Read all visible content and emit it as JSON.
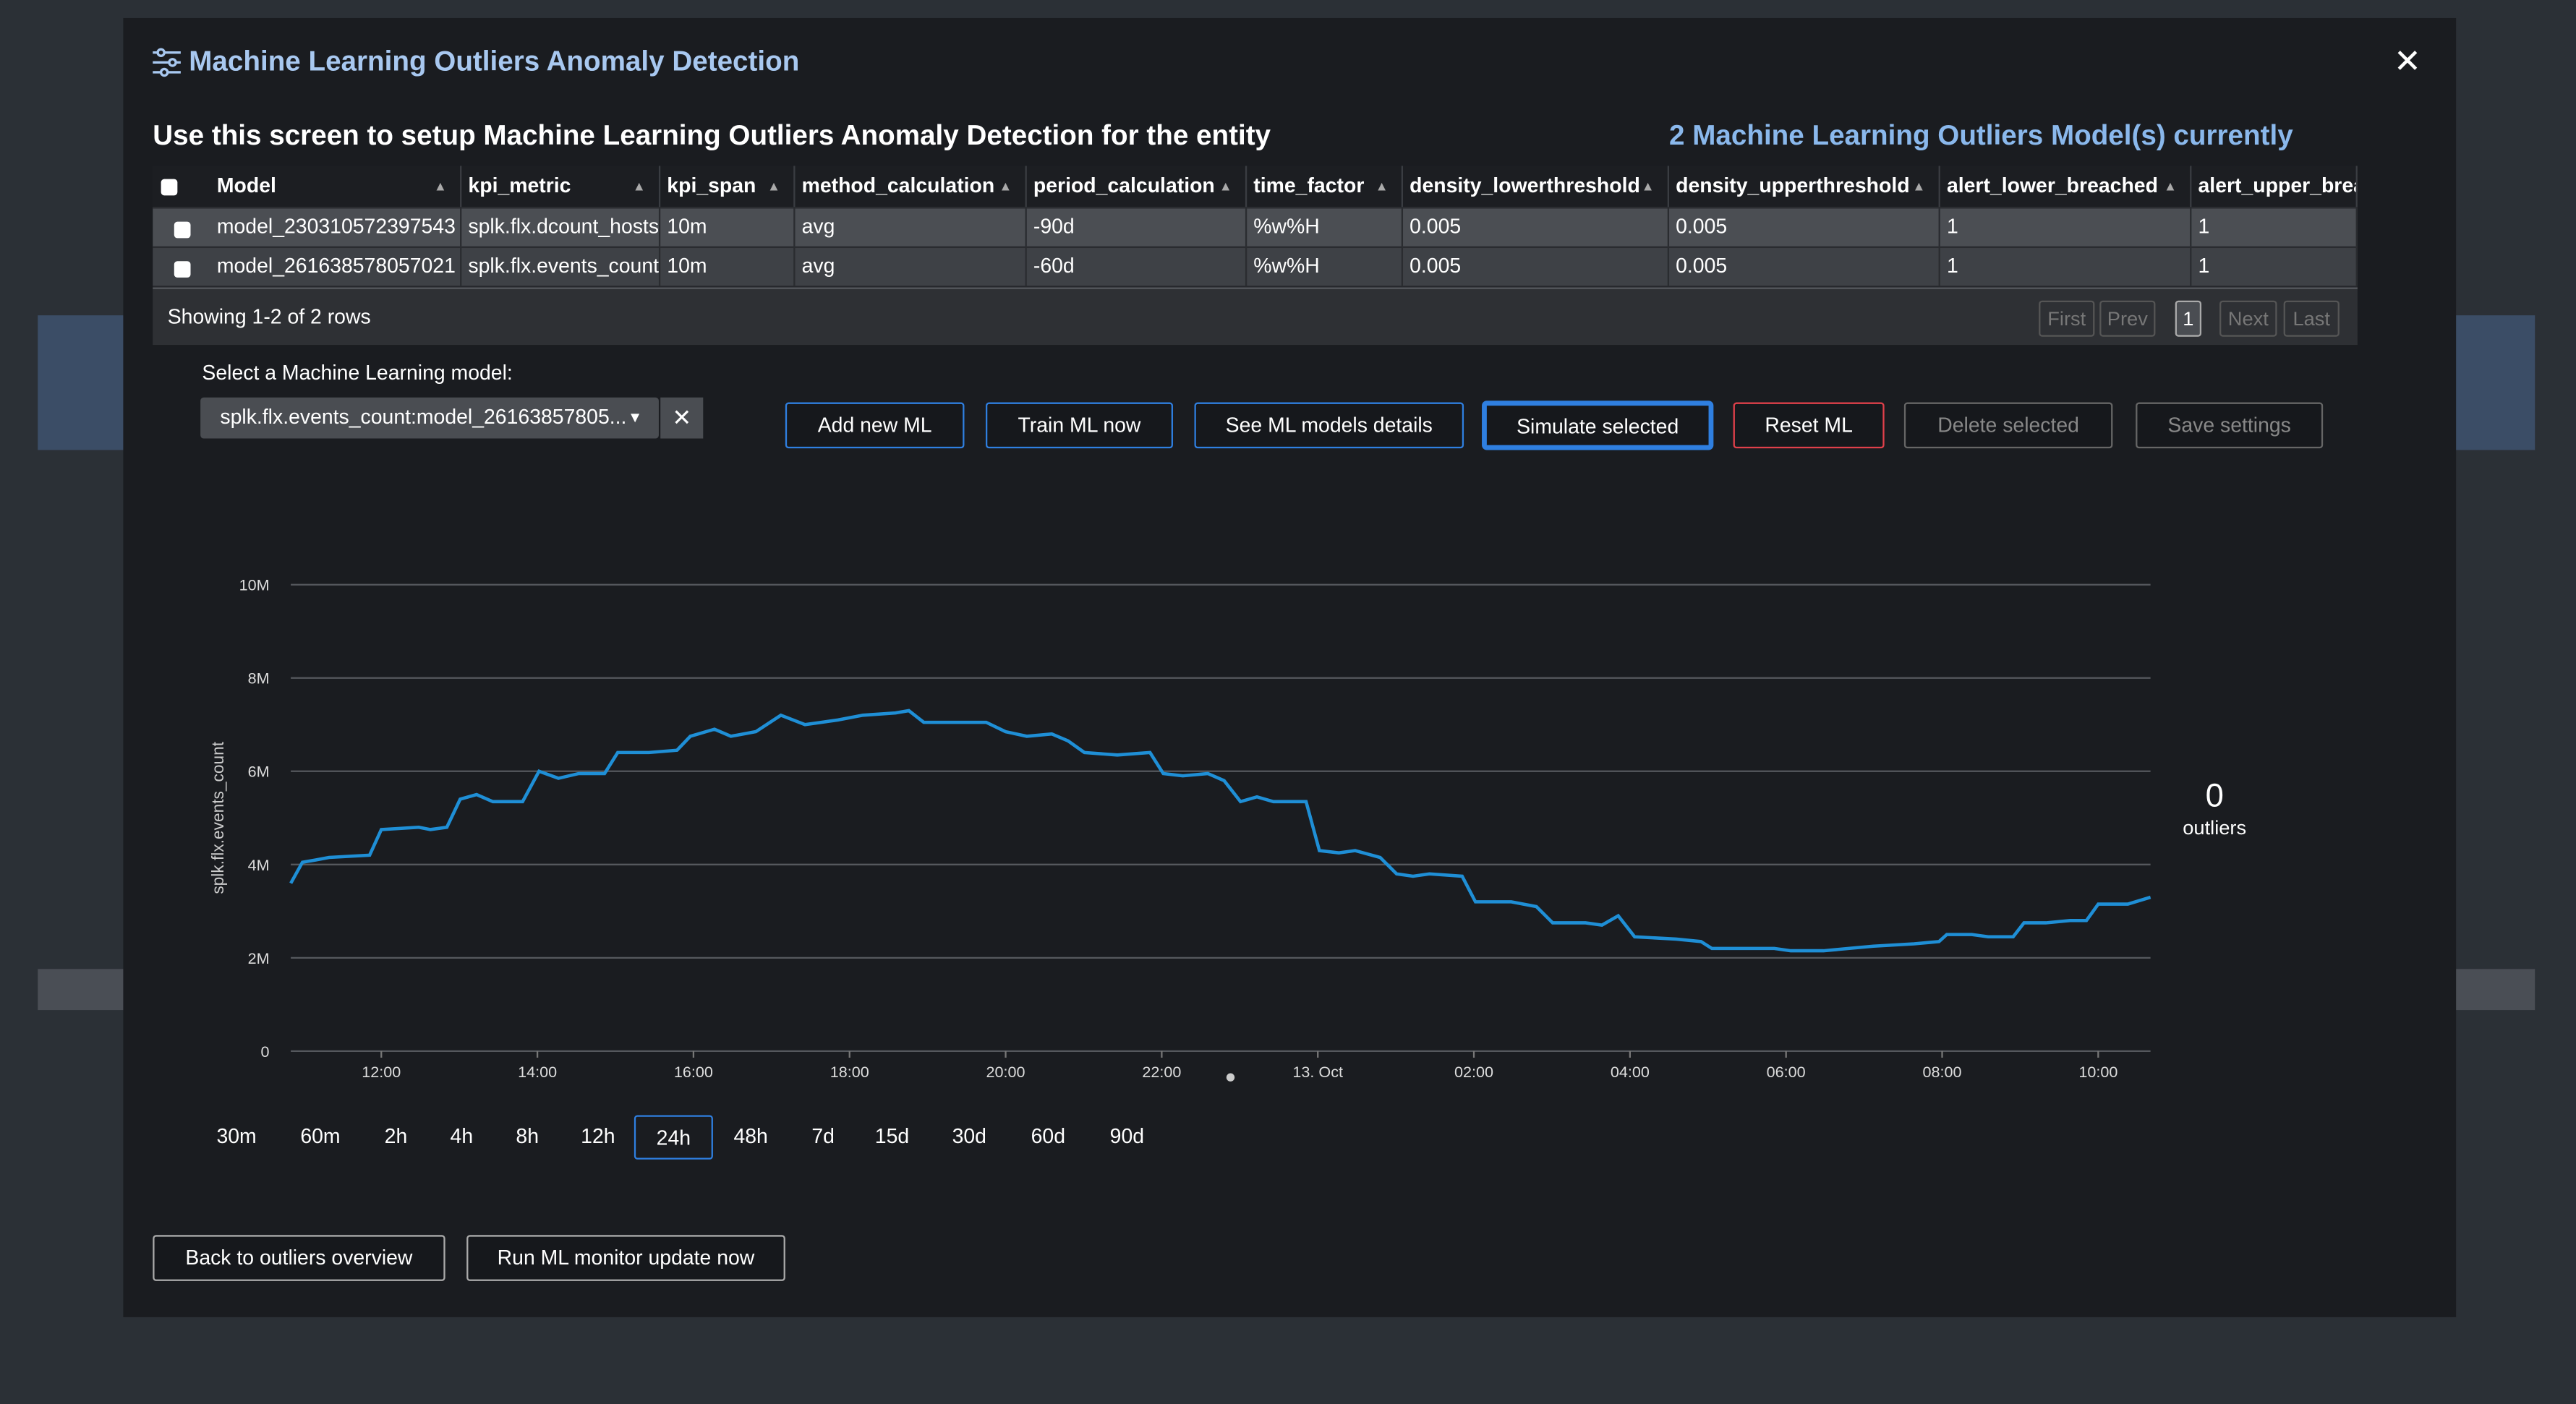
{
  "header": {
    "title": "Machine Learning Outliers Anomaly Detection",
    "subtitle": "Use this screen to setup Machine Learning Outliers Anomaly Detection for the entity",
    "model_count": "2 Machine Learning Outliers Model(s) currently"
  },
  "table": {
    "columns": [
      "Model",
      "kpi_metric",
      "kpi_span",
      "method_calculation",
      "period_calculation",
      "time_factor",
      "density_lowerthreshold",
      "density_upperthreshold",
      "alert_lower_breached",
      "alert_upper_brea"
    ],
    "rows": [
      [
        "model_230310572397543",
        "splk.flx.dcount_hosts",
        "10m",
        "avg",
        "-90d",
        "%w%H",
        "0.005",
        "0.005",
        "1",
        "1"
      ],
      [
        "model_261638578057021",
        "splk.flx.events_count",
        "10m",
        "avg",
        "-60d",
        "%w%H",
        "0.005",
        "0.005",
        "1",
        "1"
      ]
    ],
    "footer": "Showing 1-2 of 2 rows",
    "pager": [
      "First",
      "Prev",
      "1",
      "Next",
      "Last"
    ]
  },
  "model_select": {
    "label": "Select a Machine Learning model:",
    "value": "splk.flx.events_count:model_26163857805..."
  },
  "buttons": [
    "Add new ML",
    "Train ML now",
    "See ML models details",
    "Simulate selected",
    "Reset ML",
    "Delete selected",
    "Save settings"
  ],
  "chart_data": {
    "type": "line",
    "y_label": "splk.flx.events_count",
    "color": "#1f8fd6",
    "x": [
      10.84,
      10.99,
      11.16,
      11.33,
      11.85,
      12.0,
      12.48,
      12.63,
      12.84,
      13.01,
      13.22,
      13.43,
      13.81,
      14.02,
      14.27,
      14.53,
      14.86,
      15.03,
      15.43,
      15.79,
      15.96,
      16.27,
      16.48,
      16.8,
      17.12,
      17.43,
      17.64,
      17.85,
      18.17,
      18.59,
      18.76,
      18.95,
      19.33,
      19.75,
      20.0,
      20.27,
      20.59,
      20.8,
      21.01,
      21.43,
      21.85,
      22.02,
      22.27,
      22.59,
      22.8,
      23.01,
      23.22,
      23.43,
      23.85,
      24.02,
      24.27,
      24.48,
      24.8,
      25.01,
      25.22,
      25.43,
      25.85,
      26.02,
      26.48,
      26.8,
      27.01,
      27.43,
      27.64,
      27.85,
      28.06,
      28.59,
      28.91,
      29.05,
      29.43,
      29.85,
      30.06,
      30.48,
      30.8,
      31.12,
      31.64,
      31.96,
      32.06,
      32.38,
      32.59,
      32.91,
      33.05,
      33.33,
      33.64,
      33.85,
      34.0,
      34.38,
      34.67
    ],
    "values": [
      3600000,
      4050000,
      4100000,
      4150000,
      4200000,
      4750000,
      4800000,
      4750000,
      4800000,
      5400000,
      5500000,
      5350000,
      5350000,
      6000000,
      5850000,
      5950000,
      5950000,
      6400000,
      6400000,
      6450000,
      6750000,
      6900000,
      6750000,
      6850000,
      7200000,
      7000000,
      7050000,
      7100000,
      7200000,
      7250000,
      7300000,
      7050000,
      7050000,
      7050000,
      6850000,
      6750000,
      6800000,
      6650000,
      6400000,
      6350000,
      6400000,
      5950000,
      5900000,
      5950000,
      5800000,
      5350000,
      5450000,
      5350000,
      5350000,
      4300000,
      4250000,
      4300000,
      4150000,
      3800000,
      3750000,
      3800000,
      3750000,
      3200000,
      3200000,
      3100000,
      2750000,
      2750000,
      2700000,
      2900000,
      2450000,
      2400000,
      2350000,
      2200000,
      2200000,
      2200000,
      2150000,
      2150000,
      2200000,
      2250000,
      2300000,
      2350000,
      2500000,
      2500000,
      2450000,
      2450000,
      2750000,
      2750000,
      2800000,
      2800000,
      3150000,
      3150000,
      3300000
    ],
    "xlim": [
      10.84,
      34.67
    ],
    "ylim": [
      0,
      10000000
    ],
    "xticks": [
      {
        "value": 12,
        "label": "12:00"
      },
      {
        "value": 14,
        "label": "14:00"
      },
      {
        "value": 16,
        "label": "16:00"
      },
      {
        "value": 18,
        "label": "18:00"
      },
      {
        "value": 20,
        "label": "20:00"
      },
      {
        "value": 22,
        "label": "22:00"
      },
      {
        "value": 24,
        "label": "13. Oct"
      },
      {
        "value": 26,
        "label": "02:00"
      },
      {
        "value": 28,
        "label": "04:00"
      },
      {
        "value": 30,
        "label": "06:00"
      },
      {
        "value": 32,
        "label": "08:00"
      },
      {
        "value": 34,
        "label": "10:00"
      }
    ],
    "yticks": [
      0,
      {
        "value": 2000000,
        "label": "2M"
      },
      {
        "value": 4000000,
        "label": "4M"
      },
      {
        "value": 6000000,
        "label": "6M"
      },
      {
        "value": 8000000,
        "label": "8M"
      },
      {
        "value": 10000000,
        "label": "10M"
      }
    ],
    "grid": true
  },
  "outliers": {
    "count": 0,
    "label": "outliers"
  },
  "time_ranges": [
    "30m",
    "60m",
    "2h",
    "4h",
    "8h",
    "12h",
    "24h",
    "48h",
    "7d",
    "15d",
    "30d",
    "60d",
    "90d"
  ],
  "selected_range": 6,
  "footer_buttons": [
    "Back to outliers overview",
    "Run ML monitor update now"
  ]
}
